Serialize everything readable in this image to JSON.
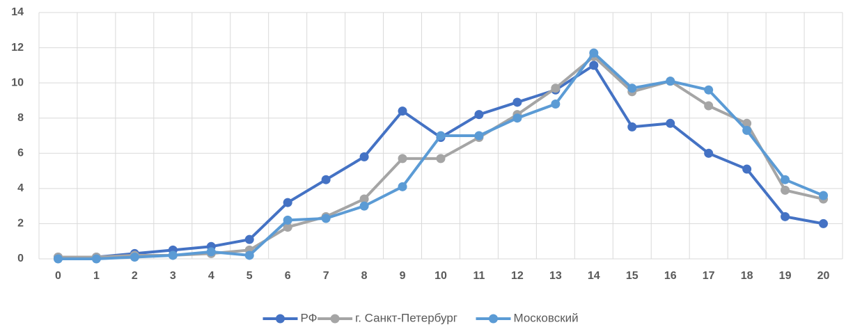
{
  "chart_data": {
    "type": "line",
    "categories": [
      "0",
      "1",
      "2",
      "3",
      "4",
      "5",
      "6",
      "7",
      "8",
      "9",
      "10",
      "11",
      "12",
      "13",
      "14",
      "15",
      "16",
      "17",
      "18",
      "19",
      "20"
    ],
    "series": [
      {
        "name": "РФ",
        "color": "#4472c4",
        "values": [
          0.1,
          0.1,
          0.3,
          0.5,
          0.7,
          1.1,
          3.2,
          4.5,
          5.8,
          8.4,
          6.9,
          8.2,
          8.9,
          9.6,
          11.0,
          7.5,
          7.7,
          6.0,
          5.1,
          2.4,
          2.0
        ]
      },
      {
        "name": "г. Санкт-Петербург",
        "color": "#a5a5a5",
        "values": [
          0.1,
          0.1,
          0.2,
          0.2,
          0.3,
          0.5,
          1.8,
          2.4,
          3.4,
          5.7,
          5.7,
          6.9,
          8.2,
          9.7,
          11.5,
          9.5,
          10.1,
          8.7,
          7.7,
          3.9,
          3.4
        ]
      },
      {
        "name": "Московский",
        "color": "#5b9bd5",
        "values": [
          0,
          0,
          0.1,
          0.2,
          0.4,
          0.2,
          2.2,
          2.3,
          3.0,
          4.1,
          7.0,
          7.0,
          8.0,
          8.8,
          11.7,
          9.7,
          10.1,
          9.6,
          7.3,
          4.5,
          3.6
        ]
      }
    ],
    "ylim": [
      0,
      14
    ],
    "yticks": [
      0,
      2,
      4,
      6,
      8,
      10,
      12,
      14
    ],
    "grid": true,
    "legend": "bottom"
  }
}
